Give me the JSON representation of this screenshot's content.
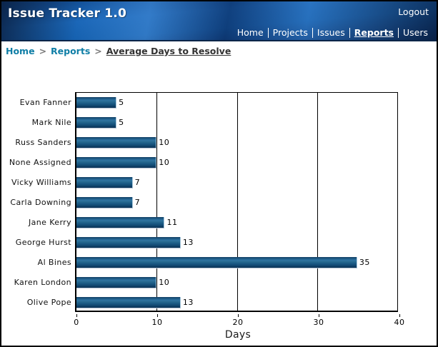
{
  "header": {
    "title": "Issue Tracker 1.0",
    "logout_label": "Logout"
  },
  "nav": {
    "items": [
      {
        "label": "Home",
        "active": false
      },
      {
        "label": "Projects",
        "active": false
      },
      {
        "label": "Issues",
        "active": false
      },
      {
        "label": "Reports",
        "active": true
      },
      {
        "label": "Users",
        "active": false
      }
    ]
  },
  "breadcrumb": {
    "separator": ">",
    "links": [
      "Home",
      "Reports"
    ],
    "current": "Average Days to Resolve"
  },
  "chart_data": {
    "type": "bar",
    "orientation": "horizontal",
    "title": "Average Days to Resolve",
    "categories": [
      "Evan Fanner",
      "Mark Nile",
      "Russ Sanders",
      "None Assigned",
      "Vicky Williams",
      "Carla Downing",
      "Jane Kerry",
      "George Hurst",
      "Al Bines",
      "Karen London",
      "Olive Pope"
    ],
    "values": [
      5,
      5,
      10,
      10,
      7,
      7,
      11,
      13,
      35,
      10,
      13
    ],
    "xlabel": "Days",
    "ylabel": "",
    "xticks": [
      0,
      10,
      20,
      30,
      40
    ],
    "xlim": [
      0,
      40
    ],
    "grid": true,
    "legend": false,
    "bar_color": "#1a5a85",
    "grid_color": "#000000"
  },
  "colors": {
    "header_blue": "#1560ae",
    "header_dark": "#0a2c5c",
    "link_teal": "#0f7ea6",
    "bar_fill": "#1a5a85",
    "page_border": "#000000"
  }
}
